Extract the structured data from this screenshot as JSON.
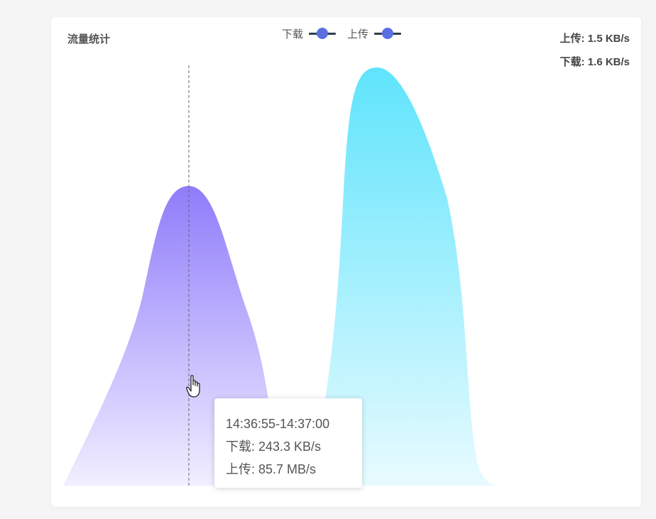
{
  "panel": {
    "title": "流量统计"
  },
  "legend": [
    {
      "label": "下载",
      "color": "#5b6fe3"
    },
    {
      "label": "上传",
      "color": "#5b6fe3"
    }
  ],
  "speeds": {
    "upload": "上传: 1.5 KB/s",
    "download": "下载: 1.6 KB/s"
  },
  "tooltip": {
    "time": "14:36:55-14:37:00",
    "download": "下载: 243.3 KB/s",
    "upload": "上传: 85.7 MB/s"
  },
  "chart_data": {
    "type": "area",
    "series": [
      {
        "name": "下载",
        "color_top": "#8f7cfb",
        "color_bottom": "#f1efff",
        "peak_fraction": 0.71
      },
      {
        "name": "上传",
        "color_top": "#5fe4fc",
        "color_bottom": "#e8fbff",
        "peak_fraction": 1.0
      }
    ],
    "grid": false
  }
}
